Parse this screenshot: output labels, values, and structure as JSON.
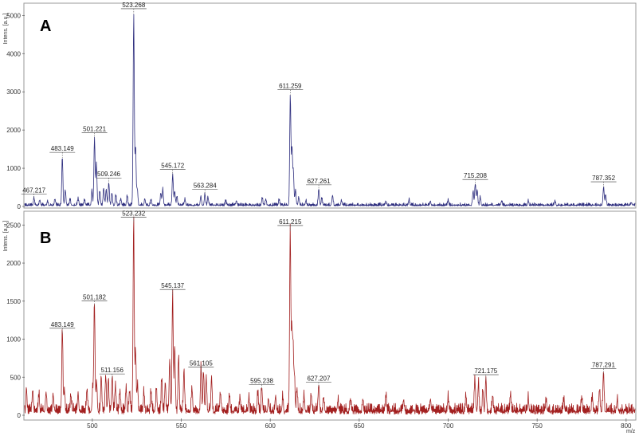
{
  "chart_data": [
    {
      "type": "line",
      "panel_label": "A",
      "ylabel": "Intens. [a.u.]",
      "xlabel": "",
      "xlim": [
        462,
        805
      ],
      "ylim": [
        0,
        5300
      ],
      "yticks": [
        0,
        1000,
        2000,
        3000,
        4000,
        5000
      ],
      "color": "#2f2f7f",
      "grid": false,
      "peaks": [
        {
          "label": "467.217",
          "x": 467.217,
          "y": 180
        },
        {
          "label": "483.149",
          "x": 483.149,
          "y": 1270
        },
        {
          "label": "501.221",
          "x": 501.221,
          "y": 1780
        },
        {
          "label": "509.246",
          "x": 509.246,
          "y": 600
        },
        {
          "label": "523.268",
          "x": 523.268,
          "y": 5030
        },
        {
          "label": "545.172",
          "x": 545.172,
          "y": 820
        },
        {
          "label": "563.284",
          "x": 563.284,
          "y": 300
        },
        {
          "label": "611.259",
          "x": 611.259,
          "y": 2910
        },
        {
          "label": "627.261",
          "x": 627.261,
          "y": 420
        },
        {
          "label": "715.208",
          "x": 715.208,
          "y": 560
        },
        {
          "label": "787.352",
          "x": 787.352,
          "y": 500
        }
      ],
      "minor_peaks": [
        {
          "x": 470.5,
          "y": 140
        },
        {
          "x": 474.8,
          "y": 110
        },
        {
          "x": 479.0,
          "y": 160
        },
        {
          "x": 484.8,
          "y": 400
        },
        {
          "x": 487.5,
          "y": 150
        },
        {
          "x": 492.0,
          "y": 170
        },
        {
          "x": 495.6,
          "y": 140
        },
        {
          "x": 499.8,
          "y": 380
        },
        {
          "x": 502.3,
          "y": 1080
        },
        {
          "x": 504.2,
          "y": 380
        },
        {
          "x": 506.4,
          "y": 460
        },
        {
          "x": 507.8,
          "y": 420
        },
        {
          "x": 511.0,
          "y": 330
        },
        {
          "x": 513.2,
          "y": 260
        },
        {
          "x": 516.0,
          "y": 170
        },
        {
          "x": 519.6,
          "y": 240
        },
        {
          "x": 524.3,
          "y": 1550
        },
        {
          "x": 525.3,
          "y": 420
        },
        {
          "x": 529.5,
          "y": 170
        },
        {
          "x": 533.0,
          "y": 150
        },
        {
          "x": 538.5,
          "y": 330
        },
        {
          "x": 539.6,
          "y": 420
        },
        {
          "x": 546.3,
          "y": 380
        },
        {
          "x": 547.6,
          "y": 230
        },
        {
          "x": 552.0,
          "y": 150
        },
        {
          "x": 561.0,
          "y": 240
        },
        {
          "x": 565.0,
          "y": 220
        },
        {
          "x": 575.0,
          "y": 110
        },
        {
          "x": 581.0,
          "y": 130
        },
        {
          "x": 595.5,
          "y": 190
        },
        {
          "x": 597.5,
          "y": 160
        },
        {
          "x": 605.0,
          "y": 140
        },
        {
          "x": 612.2,
          "y": 1500
        },
        {
          "x": 613.0,
          "y": 850
        },
        {
          "x": 614.2,
          "y": 420
        },
        {
          "x": 616.0,
          "y": 200
        },
        {
          "x": 620.0,
          "y": 120
        },
        {
          "x": 629.0,
          "y": 190
        },
        {
          "x": 635.0,
          "y": 260
        },
        {
          "x": 640.0,
          "y": 130
        },
        {
          "x": 665.0,
          "y": 110
        },
        {
          "x": 678.0,
          "y": 140
        },
        {
          "x": 690.0,
          "y": 110
        },
        {
          "x": 700.0,
          "y": 120
        },
        {
          "x": 714.0,
          "y": 370
        },
        {
          "x": 716.3,
          "y": 410
        },
        {
          "x": 718.0,
          "y": 200
        },
        {
          "x": 730.0,
          "y": 120
        },
        {
          "x": 745.0,
          "y": 110
        },
        {
          "x": 760.0,
          "y": 100
        },
        {
          "x": 788.5,
          "y": 280
        },
        {
          "x": 803.0,
          "y": 80
        }
      ]
    },
    {
      "type": "line",
      "panel_label": "B",
      "ylabel": "Intens. [a.u.]",
      "xlabel": "m/z",
      "xlim": [
        462,
        805
      ],
      "ylim": [
        0,
        2650
      ],
      "yticks": [
        0,
        500,
        1000,
        1500,
        2000,
        2500
      ],
      "xticks": [
        500,
        550,
        600,
        650,
        700,
        750,
        800
      ],
      "color": "#a32020",
      "grid": false,
      "peaks": [
        {
          "label": "483.149",
          "x": 483.149,
          "y": 1070
        },
        {
          "label": "501.182",
          "x": 501.182,
          "y": 1430
        },
        {
          "label": "511.156",
          "x": 511.156,
          "y": 470
        },
        {
          "label": "523.232",
          "x": 523.232,
          "y": 2530
        },
        {
          "label": "545.137",
          "x": 545.137,
          "y": 1580
        },
        {
          "label": "561.105",
          "x": 561.105,
          "y": 560
        },
        {
          "label": "595.238",
          "x": 595.238,
          "y": 330
        },
        {
          "label": "611.215",
          "x": 611.215,
          "y": 2420
        },
        {
          "label": "627.207",
          "x": 627.207,
          "y": 360
        },
        {
          "label": "721.175",
          "x": 721.175,
          "y": 460
        },
        {
          "label": "787.291",
          "x": 787.291,
          "y": 540
        }
      ],
      "minor_peaks": [
        {
          "x": 463.0,
          "y": 300
        },
        {
          "x": 466.5,
          "y": 280
        },
        {
          "x": 470.0,
          "y": 220
        },
        {
          "x": 474.0,
          "y": 260
        },
        {
          "x": 478.0,
          "y": 230
        },
        {
          "x": 484.3,
          "y": 280
        },
        {
          "x": 488.0,
          "y": 220
        },
        {
          "x": 492.0,
          "y": 260
        },
        {
          "x": 497.0,
          "y": 280
        },
        {
          "x": 500.2,
          "y": 310
        },
        {
          "x": 502.4,
          "y": 380
        },
        {
          "x": 505.0,
          "y": 460
        },
        {
          "x": 507.5,
          "y": 490
        },
        {
          "x": 509.0,
          "y": 430
        },
        {
          "x": 513.0,
          "y": 330
        },
        {
          "x": 515.5,
          "y": 260
        },
        {
          "x": 519.0,
          "y": 300
        },
        {
          "x": 521.0,
          "y": 280
        },
        {
          "x": 524.3,
          "y": 800
        },
        {
          "x": 525.4,
          "y": 380
        },
        {
          "x": 529.0,
          "y": 250
        },
        {
          "x": 533.0,
          "y": 270
        },
        {
          "x": 536.0,
          "y": 300
        },
        {
          "x": 539.0,
          "y": 420
        },
        {
          "x": 541.0,
          "y": 380
        },
        {
          "x": 543.5,
          "y": 700
        },
        {
          "x": 546.3,
          "y": 860
        },
        {
          "x": 548.5,
          "y": 720
        },
        {
          "x": 551.5,
          "y": 560
        },
        {
          "x": 556.0,
          "y": 300
        },
        {
          "x": 562.5,
          "y": 520
        },
        {
          "x": 564.0,
          "y": 460
        },
        {
          "x": 567.0,
          "y": 470
        },
        {
          "x": 572.0,
          "y": 260
        },
        {
          "x": 577.0,
          "y": 230
        },
        {
          "x": 583.0,
          "y": 200
        },
        {
          "x": 588.0,
          "y": 170
        },
        {
          "x": 593.0,
          "y": 220
        },
        {
          "x": 599.0,
          "y": 160
        },
        {
          "x": 603.0,
          "y": 200
        },
        {
          "x": 607.0,
          "y": 190
        },
        {
          "x": 612.1,
          "y": 1000
        },
        {
          "x": 612.8,
          "y": 850
        },
        {
          "x": 613.6,
          "y": 480
        },
        {
          "x": 615.0,
          "y": 300
        },
        {
          "x": 619.0,
          "y": 200
        },
        {
          "x": 623.0,
          "y": 220
        },
        {
          "x": 630.0,
          "y": 180
        },
        {
          "x": 638.0,
          "y": 160
        },
        {
          "x": 645.0,
          "y": 150
        },
        {
          "x": 652.0,
          "y": 170
        },
        {
          "x": 665.0,
          "y": 200
        },
        {
          "x": 675.0,
          "y": 160
        },
        {
          "x": 690.0,
          "y": 180
        },
        {
          "x": 700.0,
          "y": 170
        },
        {
          "x": 710.0,
          "y": 190
        },
        {
          "x": 715.0,
          "y": 420
        },
        {
          "x": 717.0,
          "y": 370
        },
        {
          "x": 719.5,
          "y": 300
        },
        {
          "x": 725.0,
          "y": 200
        },
        {
          "x": 735.0,
          "y": 230
        },
        {
          "x": 745.0,
          "y": 170
        },
        {
          "x": 755.0,
          "y": 160
        },
        {
          "x": 765.0,
          "y": 150
        },
        {
          "x": 775.0,
          "y": 180
        },
        {
          "x": 781.0,
          "y": 210
        },
        {
          "x": 785.0,
          "y": 280
        },
        {
          "x": 795.0,
          "y": 150
        }
      ]
    }
  ]
}
